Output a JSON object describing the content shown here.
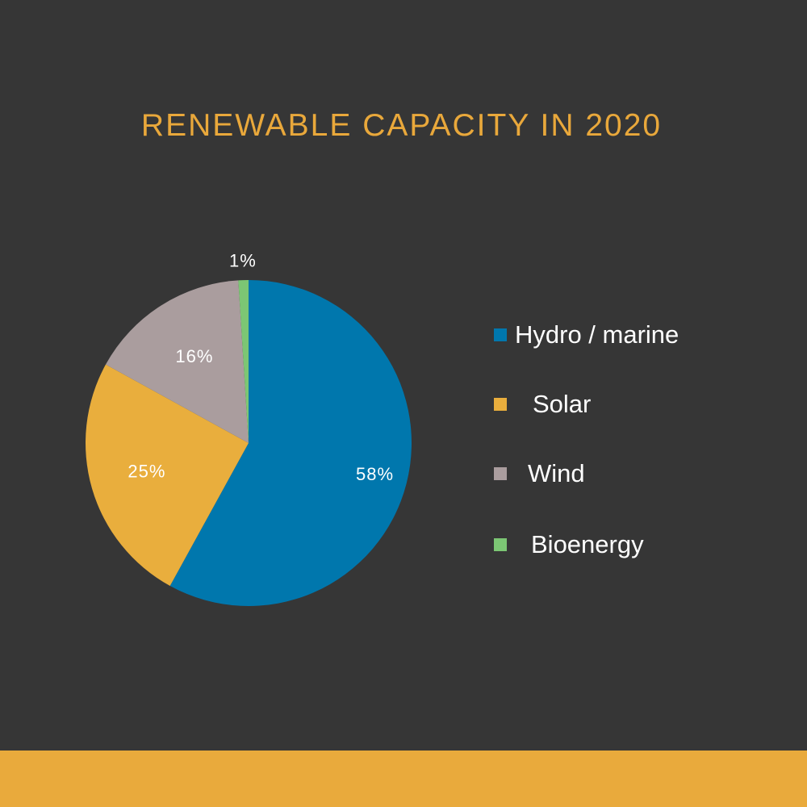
{
  "chart_data": {
    "type": "pie",
    "title": "RENEWABLE CAPACITY IN 2020",
    "categories": [
      "Hydro / marine",
      "Solar",
      "Wind",
      "Bioenergy"
    ],
    "values": [
      58,
      25,
      16,
      1
    ],
    "labels": [
      "58%",
      "25%",
      "16%",
      "1%"
    ],
    "colors": [
      "#0077ad",
      "#e9ae3d",
      "#aa9d9e",
      "#7cc674"
    ],
    "legend_position": "right"
  },
  "colors": {
    "background": "#363636",
    "title": "#e9a83b",
    "bottom_bar": "#e9aa3c"
  }
}
